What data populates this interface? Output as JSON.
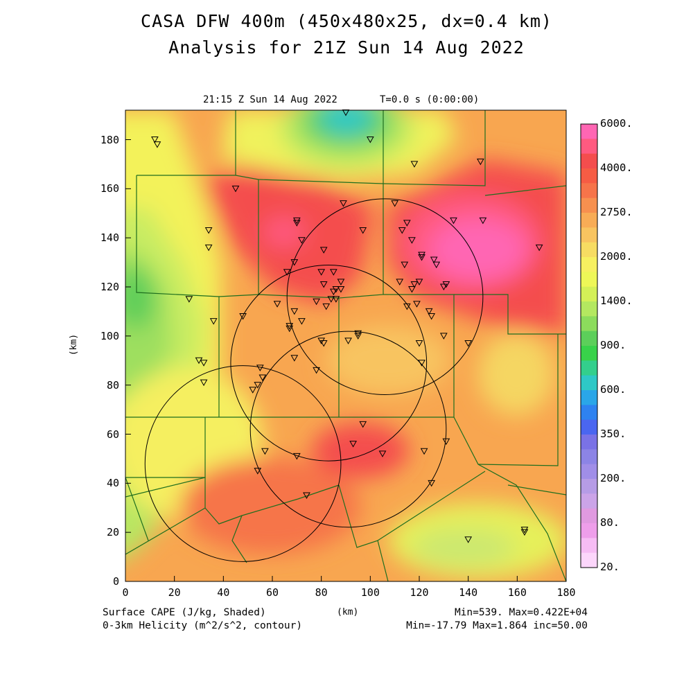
{
  "title_line1": "CASA DFW 400m (450x480x25, dx=0.4 km)",
  "title_line2": "Analysis for 21Z Sun 14 Aug 2022",
  "valid_time": "21:15 Z Sun 14 Aug 2022",
  "model_time": "T=0.0 s (0:00:00)",
  "footer": {
    "field1": "Surface CAPE (J/kg, Shaded)",
    "field2": "0-3km Helicity (m^2/s^2, contour)",
    "xunit": "(km)",
    "stats1": "Min=539. Max=0.422E+04",
    "stats2": "Min=-17.79 Max=1.864 inc=50.00"
  },
  "colorbar": {
    "labels": [
      "6000.",
      "4000.",
      "2750.",
      "2000.",
      "1400.",
      "900.",
      "600.",
      "350.",
      "200.",
      "80.",
      "20."
    ],
    "colors_top_to_bottom": [
      "#ff66b3",
      "#ff5a80",
      "#f44d4d",
      "#f65c44",
      "#f6744a",
      "#f7904f",
      "#f8ac56",
      "#f8c460",
      "#f7dc62",
      "#f7f060",
      "#eef757",
      "#d4f057",
      "#b4e860",
      "#8cdc5c",
      "#5ccf5a",
      "#38d24a",
      "#33cf8c",
      "#2ec8c6",
      "#2aa6e8",
      "#2e82f0",
      "#4a66f0",
      "#7a72e6",
      "#8c84e6",
      "#a08ee8",
      "#b69ce6",
      "#cba4e8",
      "#e09ae0",
      "#ee9eea",
      "#f6bcf4",
      "#fcd6fb"
    ]
  },
  "chart_data": {
    "type": "heatmap",
    "title": "CASA DFW 400m (450x480x25, dx=0.4 km) Analysis for 21Z Sun 14 Aug 2022",
    "xlabel": "(km)",
    "ylabel": "(km)",
    "xlim": [
      0,
      180
    ],
    "ylim": [
      0,
      192
    ],
    "x_ticks": [
      "0",
      "20",
      "40",
      "60",
      "80",
      "100",
      "120",
      "140",
      "160",
      "180"
    ],
    "y_ticks": [
      "0",
      "20",
      "40",
      "60",
      "80",
      "100",
      "120",
      "140",
      "160",
      "180"
    ],
    "field": "Surface CAPE (J/kg)",
    "min": 539,
    "max": 4220,
    "contour_field": "0-3km Helicity (m^2/s^2)",
    "radar_rings": [
      {
        "center": [
          106,
          116
        ],
        "radius": 40
      },
      {
        "center": [
          83,
          89
        ],
        "radius": 40
      },
      {
        "center": [
          91,
          62
        ],
        "radius": 40
      },
      {
        "center": [
          48,
          48
        ],
        "radius": 40
      }
    ],
    "stations": [
      [
        12,
        180
      ],
      [
        13,
        178
      ],
      [
        45,
        160
      ],
      [
        34,
        143
      ],
      [
        34,
        136
      ],
      [
        70,
        146
      ],
      [
        70,
        147
      ],
      [
        72,
        139
      ],
      [
        66,
        126
      ],
      [
        69,
        130
      ],
      [
        80,
        126
      ],
      [
        85,
        126
      ],
      [
        81,
        135
      ],
      [
        89,
        154
      ],
      [
        97,
        143
      ],
      [
        88,
        122
      ],
      [
        81,
        121
      ],
      [
        86,
        119
      ],
      [
        85,
        118
      ],
      [
        88,
        119
      ],
      [
        84,
        115
      ],
      [
        86,
        115
      ],
      [
        78,
        114
      ],
      [
        82,
        112
      ],
      [
        62,
        113
      ],
      [
        69,
        110
      ],
      [
        72,
        106
      ],
      [
        67,
        104
      ],
      [
        67,
        103
      ],
      [
        48,
        108
      ],
      [
        36,
        106
      ],
      [
        26,
        115
      ],
      [
        80,
        98
      ],
      [
        81,
        97
      ],
      [
        91,
        98
      ],
      [
        95,
        101
      ],
      [
        95,
        100
      ],
      [
        69,
        91
      ],
      [
        78,
        86
      ],
      [
        55,
        87
      ],
      [
        30,
        90
      ],
      [
        32,
        89
      ],
      [
        32,
        81
      ],
      [
        56,
        83
      ],
      [
        54,
        80
      ],
      [
        52,
        78
      ],
      [
        57,
        53
      ],
      [
        70,
        51
      ],
      [
        54,
        45
      ],
      [
        74,
        35
      ],
      [
        97,
        64
      ],
      [
        93,
        56
      ],
      [
        105,
        52
      ],
      [
        122,
        53
      ],
      [
        131,
        57
      ],
      [
        125,
        40
      ],
      [
        140,
        17
      ],
      [
        163,
        20
      ],
      [
        163,
        21
      ],
      [
        90,
        191
      ],
      [
        100,
        180
      ],
      [
        118,
        170
      ],
      [
        145,
        171
      ],
      [
        110,
        154
      ],
      [
        115,
        146
      ],
      [
        113,
        143
      ],
      [
        117,
        139
      ],
      [
        114,
        129
      ],
      [
        112,
        122
      ],
      [
        120,
        122
      ],
      [
        118,
        121
      ],
      [
        117,
        119
      ],
      [
        115,
        112
      ],
      [
        119,
        113
      ],
      [
        124,
        110
      ],
      [
        125,
        108
      ],
      [
        121,
        132
      ],
      [
        121,
        133
      ],
      [
        126,
        131
      ],
      [
        127,
        129
      ],
      [
        134,
        147
      ],
      [
        131,
        121
      ],
      [
        130,
        120
      ],
      [
        146,
        147
      ],
      [
        169,
        136
      ],
      [
        130,
        100
      ],
      [
        140,
        97
      ],
      [
        120,
        97
      ],
      [
        121,
        89
      ]
    ]
  }
}
